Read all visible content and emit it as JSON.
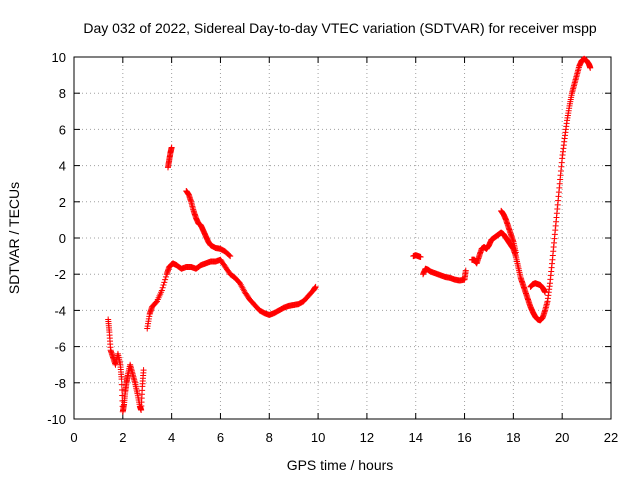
{
  "chart_data": {
    "type": "scatter",
    "title": "Day 032 of 2022, Sidereal Day-to-day VTEC variation (SDTVAR) for receiver mspp",
    "xlabel": "GPS time / hours",
    "ylabel": "SDTVAR / TECUs",
    "xlim": [
      0,
      22
    ],
    "ylim": [
      -10,
      10
    ],
    "xticks": [
      0,
      2,
      4,
      6,
      8,
      10,
      12,
      14,
      16,
      18,
      20,
      22
    ],
    "yticks": [
      -10,
      -8,
      -6,
      -4,
      -2,
      0,
      2,
      4,
      6,
      8,
      10
    ],
    "grid": true,
    "marker": "+",
    "color": "#ff0000",
    "series": [
      {
        "name": "seg1",
        "points": [
          [
            1.4,
            -4.5
          ],
          [
            1.45,
            -5.2
          ],
          [
            1.5,
            -6.2
          ],
          [
            1.6,
            -6.6
          ],
          [
            1.7,
            -7.0
          ],
          [
            1.8,
            -6.4
          ],
          [
            1.9,
            -7.0
          ],
          [
            1.95,
            -7.8
          ],
          [
            2.0,
            -9.6
          ],
          [
            2.05,
            -9.2
          ],
          [
            2.1,
            -8.5
          ],
          [
            2.15,
            -8.0
          ],
          [
            2.2,
            -7.6
          ],
          [
            2.3,
            -7.0
          ],
          [
            2.4,
            -7.5
          ],
          [
            2.5,
            -8.0
          ],
          [
            2.6,
            -8.6
          ],
          [
            2.7,
            -9.3
          ],
          [
            2.75,
            -9.5
          ],
          [
            2.8,
            -8.2
          ],
          [
            2.85,
            -7.3
          ]
        ]
      },
      {
        "name": "seg2",
        "points": [
          [
            3.0,
            -5.0
          ],
          [
            3.1,
            -4.2
          ],
          [
            3.2,
            -3.8
          ],
          [
            3.4,
            -3.5
          ],
          [
            3.6,
            -2.9
          ],
          [
            3.8,
            -2.0
          ],
          [
            3.9,
            -1.6
          ],
          [
            4.05,
            -1.4
          ],
          [
            4.2,
            -1.5
          ],
          [
            4.4,
            -1.7
          ],
          [
            4.6,
            -1.6
          ],
          [
            4.8,
            -1.6
          ],
          [
            5.0,
            -1.7
          ],
          [
            5.2,
            -1.5
          ],
          [
            5.4,
            -1.4
          ],
          [
            5.6,
            -1.3
          ],
          [
            5.8,
            -1.3
          ],
          [
            6.0,
            -1.2
          ],
          [
            6.2,
            -1.6
          ],
          [
            6.4,
            -2.0
          ],
          [
            6.6,
            -2.2
          ],
          [
            6.8,
            -2.5
          ],
          [
            7.0,
            -3.0
          ],
          [
            7.2,
            -3.4
          ],
          [
            7.4,
            -3.7
          ],
          [
            7.6,
            -4.0
          ],
          [
            7.8,
            -4.15
          ],
          [
            8.0,
            -4.25
          ],
          [
            8.2,
            -4.15
          ],
          [
            8.4,
            -4.0
          ],
          [
            8.6,
            -3.85
          ],
          [
            8.8,
            -3.75
          ],
          [
            9.0,
            -3.7
          ],
          [
            9.2,
            -3.65
          ],
          [
            9.4,
            -3.5
          ],
          [
            9.6,
            -3.2
          ],
          [
            9.8,
            -2.9
          ],
          [
            9.9,
            -2.7
          ]
        ]
      },
      {
        "name": "seg3",
        "points": [
          [
            3.85,
            3.9
          ],
          [
            3.9,
            4.3
          ],
          [
            3.95,
            4.7
          ],
          [
            4.0,
            5.0
          ]
        ]
      },
      {
        "name": "seg4",
        "points": [
          [
            4.6,
            2.6
          ],
          [
            4.7,
            2.4
          ],
          [
            4.8,
            2.0
          ],
          [
            4.9,
            1.5
          ],
          [
            5.0,
            1.1
          ],
          [
            5.1,
            0.8
          ],
          [
            5.2,
            0.7
          ],
          [
            5.3,
            0.4
          ],
          [
            5.4,
            0.1
          ],
          [
            5.5,
            -0.2
          ],
          [
            5.6,
            -0.4
          ],
          [
            5.8,
            -0.55
          ],
          [
            6.0,
            -0.6
          ],
          [
            6.2,
            -0.75
          ],
          [
            6.4,
            -1.0
          ]
        ]
      },
      {
        "name": "seg5",
        "points": [
          [
            13.9,
            -1.0
          ],
          [
            14.0,
            -0.95
          ],
          [
            14.1,
            -1.0
          ],
          [
            14.2,
            -1.05
          ]
        ]
      },
      {
        "name": "seg6",
        "points": [
          [
            14.3,
            -2.0
          ],
          [
            14.4,
            -1.7
          ],
          [
            14.5,
            -1.75
          ],
          [
            14.6,
            -1.85
          ],
          [
            14.8,
            -1.95
          ],
          [
            15.0,
            -2.05
          ],
          [
            15.2,
            -2.15
          ],
          [
            15.4,
            -2.2
          ],
          [
            15.6,
            -2.3
          ],
          [
            15.8,
            -2.35
          ],
          [
            16.0,
            -2.3
          ],
          [
            16.05,
            -1.8
          ]
        ]
      },
      {
        "name": "seg7",
        "points": [
          [
            16.3,
            -1.2
          ],
          [
            16.4,
            -1.2
          ],
          [
            16.5,
            -1.4
          ],
          [
            16.6,
            -1.0
          ],
          [
            16.7,
            -0.6
          ],
          [
            16.8,
            -0.5
          ],
          [
            16.9,
            -0.6
          ],
          [
            17.0,
            -0.4
          ],
          [
            17.1,
            -0.1
          ],
          [
            17.2,
            0.0
          ],
          [
            17.3,
            0.1
          ],
          [
            17.4,
            0.2
          ],
          [
            17.5,
            0.3
          ],
          [
            17.6,
            0.2
          ],
          [
            17.7,
            0.0
          ],
          [
            17.8,
            -0.2
          ],
          [
            17.9,
            -0.4
          ],
          [
            18.0,
            -0.6
          ],
          [
            18.1,
            -1.0
          ],
          [
            18.2,
            -1.6
          ],
          [
            18.3,
            -2.2
          ],
          [
            18.4,
            -2.6
          ],
          [
            18.5,
            -3.0
          ],
          [
            18.6,
            -3.4
          ],
          [
            18.7,
            -3.8
          ],
          [
            18.8,
            -4.1
          ],
          [
            18.9,
            -4.35
          ],
          [
            19.0,
            -4.5
          ],
          [
            19.1,
            -4.55
          ],
          [
            19.2,
            -4.4
          ],
          [
            19.3,
            -4.0
          ],
          [
            19.4,
            -3.5
          ],
          [
            19.5,
            -2.5
          ],
          [
            19.6,
            -1.2
          ],
          [
            19.7,
            0.2
          ],
          [
            19.8,
            1.6
          ],
          [
            19.9,
            3.0
          ],
          [
            20.0,
            4.4
          ],
          [
            20.1,
            5.5
          ],
          [
            20.2,
            6.5
          ],
          [
            20.3,
            7.3
          ],
          [
            20.4,
            8.0
          ],
          [
            20.5,
            8.5
          ],
          [
            20.6,
            9.0
          ],
          [
            20.7,
            9.5
          ],
          [
            20.8,
            9.8
          ],
          [
            20.9,
            9.9
          ],
          [
            21.0,
            9.8
          ],
          [
            21.1,
            9.6
          ],
          [
            21.15,
            9.4
          ]
        ]
      },
      {
        "name": "seg8",
        "points": [
          [
            17.5,
            1.5
          ],
          [
            17.6,
            1.3
          ],
          [
            17.7,
            1.0
          ],
          [
            17.8,
            0.6
          ],
          [
            17.9,
            0.2
          ],
          [
            18.0,
            -0.2
          ],
          [
            18.1,
            -0.8
          ]
        ]
      },
      {
        "name": "seg9",
        "points": [
          [
            18.7,
            -2.7
          ],
          [
            18.8,
            -2.55
          ],
          [
            18.9,
            -2.5
          ],
          [
            19.0,
            -2.55
          ],
          [
            19.1,
            -2.6
          ],
          [
            19.2,
            -2.75
          ],
          [
            19.3,
            -3.0
          ]
        ]
      }
    ]
  }
}
